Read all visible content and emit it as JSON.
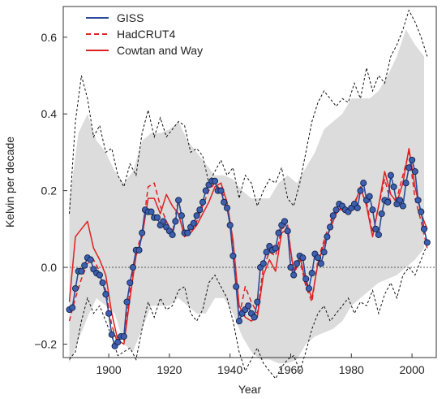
{
  "chart_data": {
    "type": "line",
    "xlabel": "Year",
    "ylabel": "Kelvin per decade",
    "xlim": [
      1885,
      2008
    ],
    "ylim": [
      -0.235,
      0.68
    ],
    "x_ticks": [
      1900,
      1920,
      1940,
      1960,
      1980,
      2000
    ],
    "y_ticks": [
      -0.2,
      0.0,
      0.2,
      0.4,
      0.6
    ],
    "y_tick_labels": [
      "−0.2",
      "0.0",
      "0.2",
      "0.4",
      "0.6"
    ],
    "x_tick_labels": [
      "1900",
      "1920",
      "1940",
      "1960",
      "1980",
      "2000"
    ],
    "grid": false,
    "legend_position": "top-left",
    "zero_line": true,
    "band": {
      "description_color": "#dcdcdc",
      "x": [
        1887,
        1890,
        1893,
        1896,
        1899,
        1902,
        1905,
        1908,
        1911,
        1914,
        1917,
        1920,
        1923,
        1926,
        1929,
        1932,
        1935,
        1938,
        1941,
        1944,
        1947,
        1950,
        1953,
        1956,
        1959,
        1962,
        1965,
        1968,
        1971,
        1974,
        1977,
        1980,
        1983,
        1986,
        1989,
        1992,
        1995,
        1998,
        2001,
        2004
      ],
      "upper": [
        0.17,
        0.35,
        0.4,
        0.33,
        0.3,
        0.25,
        0.22,
        0.25,
        0.33,
        0.35,
        0.35,
        0.36,
        0.38,
        0.33,
        0.3,
        0.27,
        0.24,
        0.24,
        0.23,
        0.2,
        0.18,
        0.18,
        0.18,
        0.22,
        0.24,
        0.22,
        0.26,
        0.3,
        0.36,
        0.38,
        0.4,
        0.44,
        0.44,
        0.44,
        0.46,
        0.5,
        0.55,
        0.62,
        0.58,
        0.55
      ],
      "lower": [
        -0.25,
        -0.19,
        -0.13,
        -0.08,
        -0.1,
        -0.12,
        -0.2,
        -0.22,
        -0.16,
        -0.1,
        -0.1,
        -0.1,
        -0.08,
        -0.1,
        -0.12,
        -0.12,
        -0.08,
        -0.08,
        -0.12,
        -0.18,
        -0.22,
        -0.24,
        -0.24,
        -0.25,
        -0.25,
        -0.24,
        -0.2,
        -0.18,
        -0.17,
        -0.16,
        -0.14,
        -0.1,
        -0.08,
        -0.06,
        -0.04,
        -0.03,
        -0.02,
        0.0,
        0.02,
        0.05
      ]
    },
    "dashed_bounds": {
      "color": "#111111",
      "x": [
        1887,
        1889,
        1891,
        1893,
        1895,
        1897,
        1899,
        1901,
        1903,
        1905,
        1907,
        1909,
        1911,
        1913,
        1915,
        1917,
        1919,
        1921,
        1923,
        1925,
        1927,
        1929,
        1931,
        1933,
        1935,
        1937,
        1939,
        1941,
        1943,
        1945,
        1947,
        1949,
        1951,
        1953,
        1955,
        1957,
        1959,
        1961,
        1963,
        1965,
        1967,
        1969,
        1971,
        1973,
        1975,
        1977,
        1979,
        1981,
        1983,
        1985,
        1987,
        1989,
        1991,
        1993,
        1995,
        1997,
        1999,
        2001,
        2003,
        2005
      ],
      "upper": [
        0.14,
        0.38,
        0.5,
        0.44,
        0.34,
        0.37,
        0.3,
        0.31,
        0.24,
        0.21,
        0.27,
        0.24,
        0.35,
        0.41,
        0.34,
        0.39,
        0.34,
        0.36,
        0.38,
        0.37,
        0.3,
        0.31,
        0.29,
        0.22,
        0.25,
        0.28,
        0.24,
        0.26,
        0.18,
        0.24,
        0.22,
        0.16,
        0.2,
        0.23,
        0.22,
        0.26,
        0.18,
        0.16,
        0.22,
        0.3,
        0.38,
        0.43,
        0.46,
        0.44,
        0.42,
        0.44,
        0.43,
        0.48,
        0.44,
        0.52,
        0.46,
        0.5,
        0.48,
        0.55,
        0.58,
        0.62,
        0.67,
        0.64,
        0.6,
        0.55
      ],
      "lower": [
        -0.24,
        -0.22,
        -0.14,
        -0.08,
        -0.12,
        -0.1,
        -0.14,
        -0.18,
        -0.23,
        -0.22,
        -0.21,
        -0.24,
        -0.16,
        -0.09,
        -0.13,
        -0.08,
        -0.11,
        -0.1,
        -0.06,
        -0.05,
        -0.12,
        -0.14,
        -0.11,
        -0.04,
        -0.02,
        -0.05,
        -0.08,
        -0.14,
        -0.22,
        -0.27,
        -0.24,
        -0.21,
        -0.25,
        -0.27,
        -0.29,
        -0.26,
        -0.24,
        -0.23,
        -0.27,
        -0.22,
        -0.16,
        -0.12,
        -0.1,
        -0.14,
        -0.12,
        -0.1,
        -0.08,
        -0.12,
        -0.09,
        -0.1,
        -0.06,
        -0.12,
        -0.07,
        -0.04,
        -0.08,
        -0.02,
        0.0,
        -0.02,
        0.02,
        0.06
      ]
    },
    "series": [
      {
        "name": "GISS",
        "color": "#2a4a9a",
        "style": "solid-with-markers",
        "x": [
          1887,
          1888,
          1889,
          1890,
          1891,
          1892,
          1893,
          1894,
          1895,
          1896,
          1897,
          1898,
          1899,
          1900,
          1901,
          1902,
          1903,
          1904,
          1905,
          1906,
          1907,
          1908,
          1909,
          1910,
          1911,
          1912,
          1913,
          1914,
          1915,
          1916,
          1917,
          1918,
          1919,
          1920,
          1921,
          1922,
          1923,
          1924,
          1925,
          1926,
          1927,
          1928,
          1929,
          1930,
          1931,
          1932,
          1933,
          1934,
          1935,
          1936,
          1937,
          1938,
          1939,
          1940,
          1941,
          1942,
          1943,
          1944,
          1945,
          1946,
          1947,
          1948,
          1949,
          1950,
          1951,
          1952,
          1953,
          1954,
          1955,
          1956,
          1957,
          1958,
          1959,
          1960,
          1961,
          1962,
          1963,
          1964,
          1965,
          1966,
          1967,
          1968,
          1969,
          1970,
          1971,
          1972,
          1973,
          1974,
          1975,
          1976,
          1977,
          1978,
          1979,
          1980,
          1981,
          1982,
          1983,
          1984,
          1985,
          1986,
          1987,
          1988,
          1989,
          1990,
          1991,
          1992,
          1993,
          1994,
          1995,
          1996,
          1997,
          1998,
          1999,
          2000,
          2001,
          2002,
          2003,
          2004,
          2005
        ],
        "y": [
          -0.11,
          -0.105,
          -0.055,
          -0.01,
          -0.01,
          0.005,
          0.025,
          0.02,
          -0.005,
          -0.015,
          -0.02,
          -0.04,
          -0.07,
          -0.12,
          -0.175,
          -0.205,
          -0.195,
          -0.18,
          -0.18,
          -0.09,
          -0.04,
          0.0,
          0.045,
          0.045,
          0.09,
          0.15,
          0.145,
          0.145,
          0.13,
          0.13,
          0.11,
          0.12,
          0.105,
          0.095,
          0.085,
          0.12,
          0.175,
          0.135,
          0.09,
          0.09,
          0.105,
          0.115,
          0.135,
          0.15,
          0.17,
          0.2,
          0.215,
          0.225,
          0.225,
          0.2,
          0.2,
          0.17,
          0.155,
          0.11,
          0.03,
          -0.05,
          -0.14,
          -0.12,
          -0.11,
          -0.1,
          -0.12,
          -0.13,
          -0.09,
          0.0,
          0.01,
          0.04,
          0.055,
          0.045,
          0.05,
          0.09,
          0.11,
          0.12,
          0.095,
          0.0,
          -0.02,
          0.01,
          0.03,
          0.025,
          -0.03,
          -0.055,
          -0.015,
          0.035,
          0.025,
          0.01,
          0.04,
          0.08,
          0.105,
          0.135,
          0.15,
          0.165,
          0.16,
          0.15,
          0.145,
          0.155,
          0.165,
          0.155,
          0.2,
          0.22,
          0.175,
          0.185,
          0.15,
          0.1,
          0.085,
          0.14,
          0.175,
          0.17,
          0.24,
          0.21,
          0.165,
          0.175,
          0.16,
          0.22,
          0.26,
          0.28,
          0.25,
          0.175,
          0.145,
          0.1,
          0.065
        ]
      },
      {
        "name": "HadCRUT4",
        "color": "#e02020",
        "style": "dashed",
        "x": [
          1887,
          1889,
          1891,
          1893,
          1895,
          1897,
          1899,
          1901,
          1903,
          1905,
          1907,
          1909,
          1911,
          1913,
          1915,
          1917,
          1919,
          1921,
          1923,
          1925,
          1927,
          1929,
          1931,
          1933,
          1935,
          1937,
          1939,
          1941,
          1943,
          1945,
          1947,
          1949,
          1951,
          1953,
          1955,
          1957,
          1959,
          1961,
          1963,
          1965,
          1967,
          1969,
          1971,
          1973,
          1975,
          1977,
          1979,
          1981,
          1983,
          1985,
          1987,
          1989,
          1991,
          1993,
          1995,
          1997,
          1999,
          2001,
          2003,
          2005
        ],
        "y": [
          -0.14,
          -0.08,
          -0.03,
          0.01,
          0.02,
          -0.01,
          -0.06,
          -0.15,
          -0.2,
          -0.19,
          -0.06,
          0.04,
          0.09,
          0.21,
          0.22,
          0.16,
          0.12,
          0.09,
          0.18,
          0.09,
          0.1,
          0.12,
          0.16,
          0.2,
          0.22,
          0.2,
          0.17,
          0.06,
          -0.13,
          -0.05,
          -0.09,
          -0.12,
          0.0,
          0.04,
          0.03,
          0.1,
          0.11,
          -0.02,
          0.02,
          -0.05,
          -0.09,
          0.02,
          0.07,
          0.12,
          0.15,
          0.15,
          0.14,
          0.17,
          0.2,
          0.17,
          0.09,
          0.16,
          0.23,
          0.17,
          0.18,
          0.24,
          0.3,
          0.18,
          0.12,
          0.05
        ]
      },
      {
        "name": "Cowtan and Way",
        "color": "#e02020",
        "style": "solid",
        "x": [
          1887,
          1889,
          1891,
          1893,
          1895,
          1897,
          1899,
          1901,
          1903,
          1905,
          1907,
          1909,
          1911,
          1913,
          1915,
          1917,
          1919,
          1921,
          1923,
          1925,
          1927,
          1929,
          1931,
          1933,
          1935,
          1937,
          1939,
          1941,
          1943,
          1945,
          1947,
          1949,
          1951,
          1953,
          1955,
          1957,
          1959,
          1961,
          1963,
          1965,
          1967,
          1969,
          1971,
          1973,
          1975,
          1977,
          1979,
          1981,
          1983,
          1985,
          1987,
          1989,
          1991,
          1993,
          1995,
          1997,
          1999,
          2001,
          2003,
          2005
        ],
        "y": [
          -0.09,
          0.08,
          0.1,
          0.12,
          0.05,
          0.02,
          -0.02,
          -0.12,
          -0.19,
          -0.2,
          -0.08,
          0.03,
          0.08,
          0.18,
          0.18,
          0.14,
          0.19,
          0.16,
          0.14,
          0.08,
          0.09,
          0.11,
          0.14,
          0.17,
          0.21,
          0.22,
          0.17,
          0.07,
          -0.1,
          -0.13,
          -0.14,
          -0.13,
          -0.02,
          0.02,
          -0.01,
          0.09,
          0.1,
          -0.01,
          0.03,
          -0.04,
          -0.08,
          0.01,
          0.06,
          0.1,
          0.14,
          0.16,
          0.15,
          0.16,
          0.21,
          0.16,
          0.08,
          0.16,
          0.25,
          0.19,
          0.17,
          0.22,
          0.31,
          0.21,
          0.14,
          0.1
        ]
      }
    ]
  }
}
